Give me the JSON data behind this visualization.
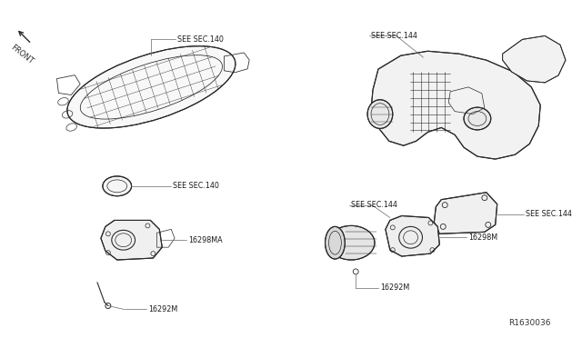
{
  "bg_color": "#ffffff",
  "line_color": "#2a2a2a",
  "text_color": "#1a1a1a",
  "ref_number": "R1630036",
  "font_size_labels": 5.8,
  "font_size_ref": 6.5,
  "font_size_front": 6.0,
  "labels": {
    "front": "FRONT",
    "see_sec_140_top": "SEE SEC.140",
    "see_sec_140_mid": "SEE SEC.140",
    "label_16298MA": "16298MA",
    "label_16292M_left": "16292M",
    "see_sec_144_top": "SEE SEC.144",
    "see_sec_144_mid_right": "SEE SEC.144",
    "see_sec_144_lower_left": "SEE SEC.144",
    "label_16298M_right": "16298M",
    "label_16292M_right": "16292M"
  }
}
